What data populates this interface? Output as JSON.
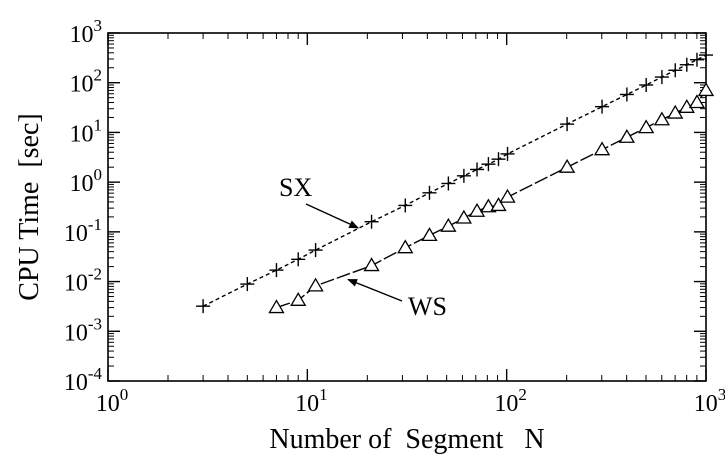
{
  "chart_data": {
    "type": "line",
    "x_scale": "log",
    "y_scale": "log",
    "xlim": [
      1,
      1000
    ],
    "ylim": [
      0.0001,
      1000
    ],
    "xlabel": "Number of  Segment   N",
    "ylabel": "CPU Time  [sec]",
    "grid": false,
    "legend": "none",
    "x_ticks": [
      {
        "value": 1,
        "base": "10",
        "exp": "0"
      },
      {
        "value": 10,
        "base": "10",
        "exp": "1"
      },
      {
        "value": 100,
        "base": "10",
        "exp": "2"
      },
      {
        "value": 1000,
        "base": "10",
        "exp": "3"
      }
    ],
    "y_ticks": [
      {
        "value": 0.0001,
        "base": "10",
        "exp": "-4"
      },
      {
        "value": 0.001,
        "base": "10",
        "exp": "-3"
      },
      {
        "value": 0.01,
        "base": "10",
        "exp": "-2"
      },
      {
        "value": 0.1,
        "base": "10",
        "exp": "-1"
      },
      {
        "value": 1,
        "base": "10",
        "exp": "0"
      },
      {
        "value": 10,
        "base": "10",
        "exp": "1"
      },
      {
        "value": 100,
        "base": "10",
        "exp": "2"
      },
      {
        "value": 1000,
        "base": "10",
        "exp": "3"
      }
    ],
    "series": [
      {
        "name": "SX",
        "marker": "plus",
        "line_style": "dashed",
        "x": [
          3,
          5,
          7,
          9,
          11,
          21,
          31,
          41,
          51,
          61,
          71,
          81,
          91,
          101,
          201,
          301,
          401,
          501,
          601,
          701,
          801,
          901,
          1000
        ],
        "y": [
          0.0032,
          0.0089,
          0.017,
          0.028,
          0.043,
          0.16,
          0.34,
          0.61,
          0.94,
          1.34,
          1.8,
          2.3,
          2.9,
          3.7,
          14.7,
          33,
          58,
          90,
          130,
          178,
          230,
          290,
          360
        ]
      },
      {
        "name": "WS",
        "marker": "triangle",
        "line_style": "long-dash",
        "x": [
          7,
          9,
          11,
          21,
          31,
          41,
          51,
          61,
          71,
          81,
          91,
          101,
          201,
          301,
          401,
          501,
          601,
          701,
          801,
          901,
          1000
        ],
        "y": [
          0.003,
          0.0042,
          0.0082,
          0.021,
          0.048,
          0.085,
          0.13,
          0.19,
          0.26,
          0.32,
          0.34,
          0.5,
          2.0,
          4.5,
          8.0,
          12.5,
          18,
          24.5,
          32,
          40,
          70
        ]
      }
    ],
    "annotations": [
      {
        "text": "SX",
        "series": "SX",
        "arrow_to_x": 18,
        "arrow_to_y": 0.12
      },
      {
        "text": "WS",
        "series": "WS",
        "arrow_to_x": 16,
        "arrow_to_y": 0.011
      }
    ]
  }
}
